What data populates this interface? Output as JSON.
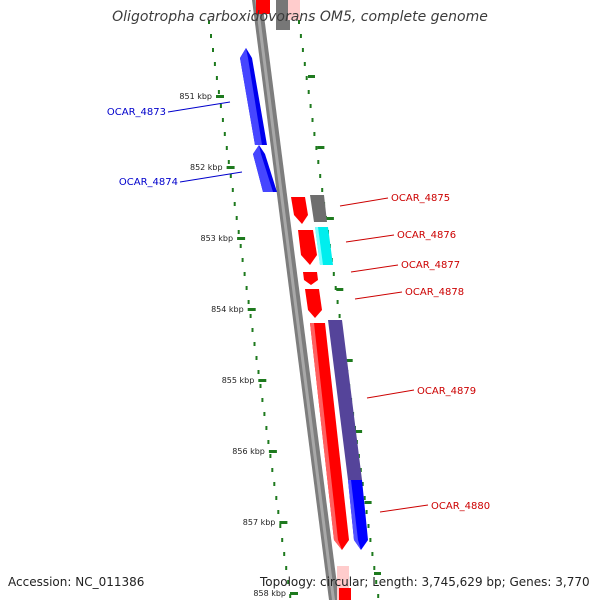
{
  "title": "Oligotropha carboxidovorans OM5, complete genome",
  "accession": "Accession: NC_011386",
  "topology": "Topology: circular; Length: 3,745,629 bp; Genes: 3,770",
  "ruler_labels": [
    "851 kbp",
    "852 kbp",
    "853 kbp",
    "854 kbp",
    "855 kbp",
    "856 kbp",
    "857 kbp",
    "858 kbp"
  ],
  "colors": {
    "backbone": "#7d7d7d",
    "tick": "#1e7a1e",
    "red": "#ff0000",
    "blue": "#0000ff",
    "gray": "#6e6e6e",
    "cyan": "#00ffff",
    "purple": "#55449a",
    "label_blue": "#0000cc",
    "label_red": "#cc0000"
  },
  "genes": [
    {
      "name": "OCAR_4873",
      "color": "blue",
      "strand": "reverse"
    },
    {
      "name": "OCAR_4874",
      "color": "blue",
      "strand": "reverse"
    },
    {
      "name": "OCAR_4875",
      "color": "gray",
      "strand": "forward"
    },
    {
      "name": "OCAR_4876",
      "color": "cyan",
      "strand": "forward"
    },
    {
      "name": "OCAR_4877",
      "color": "red",
      "strand": "forward"
    },
    {
      "name": "OCAR_4878",
      "color": "red",
      "strand": "forward"
    },
    {
      "name": "OCAR_4879",
      "color": "purple",
      "strand": "forward"
    },
    {
      "name": "OCAR_4880",
      "color": "blue",
      "strand": "forward"
    }
  ]
}
